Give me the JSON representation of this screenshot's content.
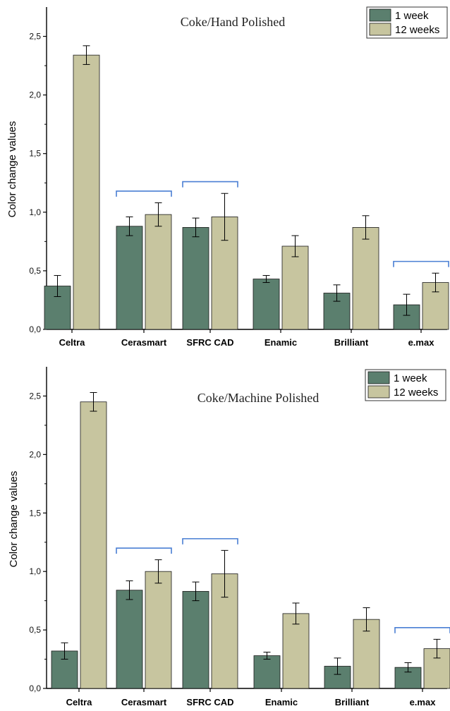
{
  "colors": {
    "series_1": "#5b7f6e",
    "series_2": "#c7c59f",
    "bracket": "#4a7fd4",
    "axis": "#000000"
  },
  "chart_data": [
    {
      "type": "bar",
      "title": "Coke/Hand Polished",
      "xlabel": "",
      "ylabel": "Color change values",
      "ylim": [
        0,
        2.75
      ],
      "yticks": [
        "0,0",
        "0,5",
        "1,0",
        "1,5",
        "2,0",
        "2,5"
      ],
      "categories": [
        "Celtra",
        "Cerasmart",
        "SFRC CAD",
        "Enamic",
        "Brilliant",
        "e.max"
      ],
      "series": [
        {
          "name": "1 week",
          "values": [
            0.37,
            0.88,
            0.87,
            0.43,
            0.31,
            0.21
          ],
          "errors": [
            0.09,
            0.08,
            0.08,
            0.03,
            0.07,
            0.09
          ]
        },
        {
          "name": "12 weeks",
          "values": [
            2.34,
            0.98,
            0.96,
            0.71,
            0.87,
            0.4
          ],
          "errors": [
            0.08,
            0.1,
            0.2,
            0.09,
            0.1,
            0.08
          ]
        }
      ],
      "brackets": [
        "Cerasmart",
        "SFRC CAD",
        "e.max"
      ],
      "legend": "top-right"
    },
    {
      "type": "bar",
      "title": "Coke/Machine Polished",
      "xlabel": "",
      "ylabel": "Color change values",
      "ylim": [
        0,
        2.75
      ],
      "yticks": [
        "0,0",
        "0,5",
        "1,0",
        "1,5",
        "2,0",
        "2,5"
      ],
      "categories": [
        "Celtra",
        "Cerasmart",
        "SFRC CAD",
        "Enamic",
        "Brilliant",
        "e.max"
      ],
      "series": [
        {
          "name": "1 week",
          "values": [
            0.32,
            0.84,
            0.83,
            0.28,
            0.19,
            0.18
          ],
          "errors": [
            0.07,
            0.08,
            0.08,
            0.03,
            0.07,
            0.04
          ]
        },
        {
          "name": "12 weeks",
          "values": [
            2.45,
            1.0,
            0.98,
            0.64,
            0.59,
            0.34
          ],
          "errors": [
            0.08,
            0.1,
            0.2,
            0.09,
            0.1,
            0.08
          ]
        }
      ],
      "brackets": [
        "Cerasmart",
        "SFRC CAD",
        "e.max"
      ],
      "legend": "top-right"
    }
  ]
}
